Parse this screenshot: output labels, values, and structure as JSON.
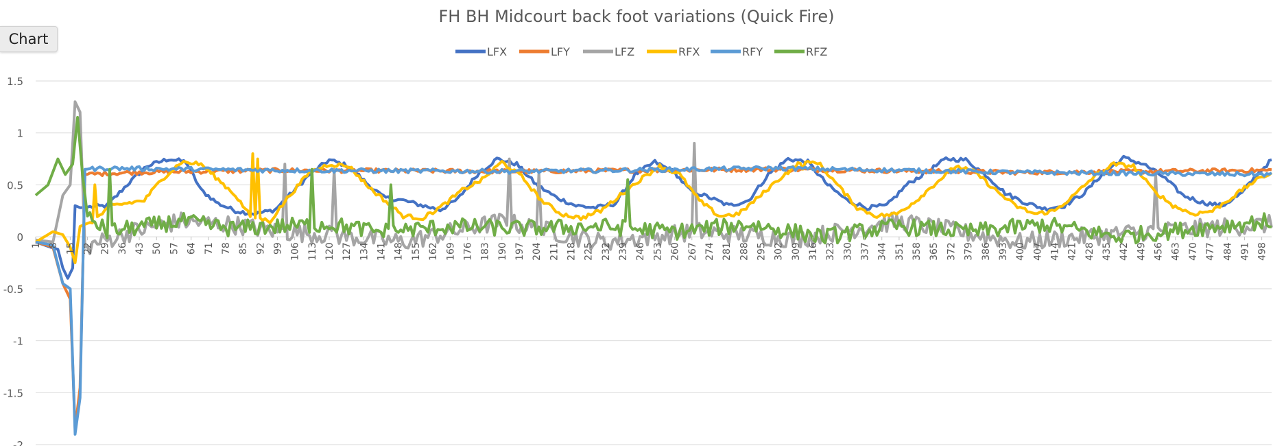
{
  "tab": {
    "label": "Chart"
  },
  "chart_data": {
    "type": "line",
    "title": "FH BH Midcourt back foot variations (Quick Fire)",
    "xlabel": "",
    "ylabel": "",
    "ylim": [
      -2,
      1.5
    ],
    "ytick_step": 0.5,
    "y_tick_labels": [
      "1.5",
      "1",
      "0.5",
      "0",
      "-0.5",
      "-1",
      "-1.5",
      "-2"
    ],
    "x_count": 502,
    "x_tick_labels": [
      "1",
      "8",
      "15",
      "22",
      "29",
      "36",
      "43",
      "50",
      "57",
      "64",
      "71",
      "78",
      "85",
      "92",
      "99",
      "106",
      "113",
      "120",
      "127",
      "134",
      "141",
      "148",
      "155",
      "162",
      "169",
      "176",
      "183",
      "190",
      "197",
      "204",
      "211",
      "218",
      "225",
      "232",
      "239",
      "246",
      "253",
      "260",
      "267",
      "274",
      "281",
      "288",
      "295",
      "302",
      "309",
      "316",
      "323",
      "330",
      "337",
      "344",
      "351",
      "358",
      "365",
      "372",
      "379",
      "386",
      "393",
      "400",
      "407",
      "414",
      "421",
      "428",
      "435",
      "442",
      "449",
      "456",
      "463",
      "470",
      "477",
      "484",
      "491",
      "498"
    ],
    "legend": "top-center",
    "grid": true,
    "series": [
      {
        "name": "LFX",
        "color": "#4472C4",
        "shape": [
          [
            1,
            -0.05
          ],
          [
            7,
            -0.1
          ],
          [
            10,
            -0.12
          ],
          [
            12,
            -0.3
          ],
          [
            14,
            -0.4
          ],
          [
            16,
            -0.3
          ],
          [
            17,
            0.3
          ],
          [
            19,
            0.28
          ],
          [
            30,
            0.3
          ],
          [
            38,
            0.5
          ],
          [
            46,
            0.68
          ],
          [
            55,
            0.75
          ],
          [
            62,
            0.72
          ],
          [
            68,
            0.45
          ],
          [
            75,
            0.32
          ],
          [
            82,
            0.25
          ],
          [
            90,
            0.22
          ],
          [
            98,
            0.26
          ],
          [
            106,
            0.45
          ],
          [
            112,
            0.6
          ],
          [
            120,
            0.74
          ],
          [
            128,
            0.68
          ],
          [
            135,
            0.52
          ],
          [
            142,
            0.38
          ],
          [
            150,
            0.35
          ],
          [
            158,
            0.3
          ],
          [
            165,
            0.26
          ],
          [
            172,
            0.36
          ],
          [
            180,
            0.6
          ],
          [
            188,
            0.75
          ],
          [
            196,
            0.7
          ],
          [
            204,
            0.5
          ],
          [
            212,
            0.38
          ],
          [
            220,
            0.3
          ],
          [
            228,
            0.28
          ],
          [
            236,
            0.32
          ],
          [
            244,
            0.6
          ],
          [
            252,
            0.72
          ],
          [
            260,
            0.62
          ],
          [
            266,
            0.45
          ],
          [
            274,
            0.38
          ],
          [
            282,
            0.3
          ],
          [
            290,
            0.35
          ],
          [
            298,
            0.6
          ],
          [
            306,
            0.75
          ],
          [
            314,
            0.72
          ],
          [
            322,
            0.5
          ],
          [
            330,
            0.35
          ],
          [
            338,
            0.28
          ],
          [
            346,
            0.3
          ],
          [
            354,
            0.5
          ],
          [
            362,
            0.62
          ],
          [
            370,
            0.75
          ],
          [
            378,
            0.74
          ],
          [
            386,
            0.6
          ],
          [
            394,
            0.42
          ],
          [
            402,
            0.33
          ],
          [
            410,
            0.27
          ],
          [
            418,
            0.3
          ],
          [
            426,
            0.42
          ],
          [
            434,
            0.62
          ],
          [
            442,
            0.76
          ],
          [
            450,
            0.7
          ],
          [
            458,
            0.58
          ],
          [
            466,
            0.4
          ],
          [
            474,
            0.33
          ],
          [
            482,
            0.3
          ],
          [
            490,
            0.42
          ],
          [
            496,
            0.6
          ],
          [
            502,
            0.74
          ]
        ],
        "noise": 0.02
      },
      {
        "name": "LFY",
        "color": "#ED7D31",
        "shape": [
          [
            1,
            -0.05
          ],
          [
            8,
            -0.1
          ],
          [
            12,
            -0.45
          ],
          [
            15,
            -0.6
          ],
          [
            17,
            -1.85
          ],
          [
            19,
            -1.45
          ],
          [
            21,
            0.6
          ],
          [
            40,
            0.62
          ],
          [
            100,
            0.64
          ],
          [
            200,
            0.63
          ],
          [
            300,
            0.65
          ],
          [
            400,
            0.62
          ],
          [
            502,
            0.64
          ]
        ],
        "noise": 0.02
      },
      {
        "name": "LFZ",
        "color": "#A5A5A5",
        "shape": [
          [
            1,
            -0.03
          ],
          [
            8,
            -0.05
          ],
          [
            12,
            0.4
          ],
          [
            15,
            0.5
          ],
          [
            17,
            1.3
          ],
          [
            19,
            1.2
          ],
          [
            21,
            -0.1
          ],
          [
            40,
            0.05
          ],
          [
            60,
            0.15
          ],
          [
            80,
            0.12
          ],
          [
            100,
            0.05
          ],
          [
            120,
            0.02
          ],
          [
            150,
            -0.05
          ],
          [
            190,
            0.15
          ],
          [
            230,
            -0.05
          ],
          [
            270,
            0.05
          ],
          [
            310,
            -0.02
          ],
          [
            350,
            0.15
          ],
          [
            400,
            -0.05
          ],
          [
            450,
            0.05
          ],
          [
            502,
            0.12
          ]
        ],
        "noise": 0.09,
        "spikes": [
          [
            102,
            0.7
          ],
          [
            122,
            0.65
          ],
          [
            193,
            0.75
          ],
          [
            205,
            0.62
          ],
          [
            268,
            0.9
          ],
          [
            455,
            0.6
          ]
        ]
      },
      {
        "name": "RFX",
        "color": "#FFC000",
        "shape": [
          [
            1,
            -0.05
          ],
          [
            8,
            0.05
          ],
          [
            12,
            0.02
          ],
          [
            15,
            -0.1
          ],
          [
            17,
            -0.25
          ],
          [
            19,
            0.1
          ],
          [
            24,
            0.15
          ],
          [
            32,
            0.3
          ],
          [
            45,
            0.35
          ],
          [
            52,
            0.55
          ],
          [
            60,
            0.72
          ],
          [
            68,
            0.7
          ],
          [
            75,
            0.55
          ],
          [
            82,
            0.4
          ],
          [
            88,
            0.2
          ],
          [
            96,
            0.15
          ],
          [
            104,
            0.4
          ],
          [
            112,
            0.62
          ],
          [
            120,
            0.7
          ],
          [
            128,
            0.68
          ],
          [
            136,
            0.48
          ],
          [
            144,
            0.32
          ],
          [
            150,
            0.2
          ],
          [
            158,
            0.18
          ],
          [
            166,
            0.3
          ],
          [
            174,
            0.45
          ],
          [
            182,
            0.55
          ],
          [
            190,
            0.72
          ],
          [
            198,
            0.58
          ],
          [
            206,
            0.35
          ],
          [
            214,
            0.22
          ],
          [
            222,
            0.18
          ],
          [
            230,
            0.25
          ],
          [
            238,
            0.4
          ],
          [
            246,
            0.55
          ],
          [
            254,
            0.68
          ],
          [
            262,
            0.6
          ],
          [
            270,
            0.35
          ],
          [
            278,
            0.2
          ],
          [
            286,
            0.22
          ],
          [
            294,
            0.38
          ],
          [
            302,
            0.55
          ],
          [
            310,
            0.7
          ],
          [
            318,
            0.72
          ],
          [
            326,
            0.5
          ],
          [
            334,
            0.28
          ],
          [
            342,
            0.2
          ],
          [
            350,
            0.22
          ],
          [
            358,
            0.35
          ],
          [
            366,
            0.52
          ],
          [
            374,
            0.68
          ],
          [
            382,
            0.62
          ],
          [
            390,
            0.45
          ],
          [
            398,
            0.3
          ],
          [
            406,
            0.22
          ],
          [
            414,
            0.25
          ],
          [
            422,
            0.4
          ],
          [
            430,
            0.58
          ],
          [
            438,
            0.7
          ],
          [
            446,
            0.68
          ],
          [
            454,
            0.45
          ],
          [
            462,
            0.3
          ],
          [
            470,
            0.22
          ],
          [
            478,
            0.25
          ],
          [
            486,
            0.38
          ],
          [
            494,
            0.52
          ],
          [
            502,
            0.62
          ]
        ],
        "noise": 0.02,
        "spikes": [
          [
            89,
            0.8
          ],
          [
            91,
            0.75
          ],
          [
            25,
            0.5
          ],
          [
            312,
            0.65
          ]
        ]
      },
      {
        "name": "RFY",
        "color": "#5B9BD5",
        "shape": [
          [
            1,
            -0.05
          ],
          [
            8,
            -0.08
          ],
          [
            12,
            -0.45
          ],
          [
            15,
            -0.5
          ],
          [
            17,
            -1.9
          ],
          [
            19,
            -1.55
          ],
          [
            21,
            0.65
          ],
          [
            30,
            0.66
          ],
          [
            100,
            0.64
          ],
          [
            200,
            0.63
          ],
          [
            300,
            0.66
          ],
          [
            400,
            0.62
          ],
          [
            502,
            0.6
          ]
        ],
        "noise": 0.02
      },
      {
        "name": "RFZ",
        "color": "#70AD47",
        "shape": [
          [
            1,
            0.4
          ],
          [
            6,
            0.5
          ],
          [
            10,
            0.75
          ],
          [
            13,
            0.6
          ],
          [
            16,
            0.7
          ],
          [
            18,
            1.15
          ],
          [
            20,
            0.6
          ],
          [
            22,
            0.2
          ],
          [
            30,
            0.05
          ],
          [
            45,
            0.1
          ],
          [
            60,
            0.15
          ],
          [
            80,
            0.08
          ],
          [
            100,
            0.1
          ],
          [
            120,
            0.12
          ],
          [
            140,
            0.05
          ],
          [
            170,
            0.1
          ],
          [
            200,
            0.08
          ],
          [
            230,
            0.1
          ],
          [
            260,
            0.05
          ],
          [
            290,
            0.12
          ],
          [
            320,
            0.0
          ],
          [
            350,
            0.1
          ],
          [
            380,
            0.05
          ],
          [
            410,
            0.12
          ],
          [
            440,
            0.0
          ],
          [
            470,
            0.08
          ],
          [
            500,
            0.15
          ],
          [
            502,
            0.02
          ]
        ],
        "noise": 0.08,
        "spikes": [
          [
            113,
            0.65
          ],
          [
            145,
            0.5
          ],
          [
            241,
            0.55
          ],
          [
            31,
            0.65
          ]
        ]
      }
    ]
  }
}
